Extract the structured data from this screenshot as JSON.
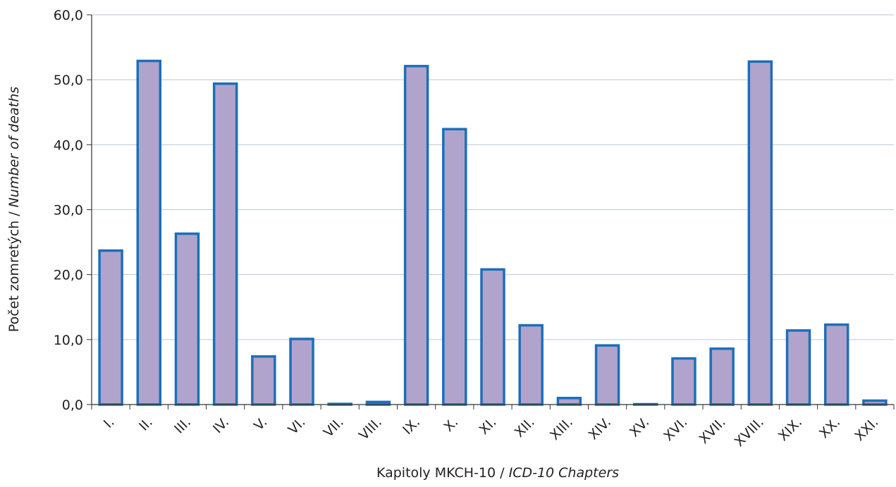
{
  "chart_data": {
    "type": "bar",
    "categories": [
      "I.",
      "II.",
      "III.",
      "IV.",
      "V.",
      "VI.",
      "VII.",
      "VIII.",
      "IX.",
      "X.",
      "XI.",
      "XII.",
      "XIII.",
      "XIV.",
      "XV.",
      "XVI.",
      "XVII.",
      "XVIII.",
      "XIX.",
      "XX.",
      "XXI."
    ],
    "values": [
      23.7,
      52.9,
      26.3,
      49.4,
      7.4,
      10.1,
      0.1,
      0.4,
      52.1,
      42.4,
      20.8,
      12.2,
      1.0,
      9.1,
      0.0,
      7.1,
      8.6,
      52.8,
      11.4,
      12.3,
      0.6
    ],
    "title": "",
    "xlabel": "Kapitoly MKCH-10 / ",
    "xlabel_italic": "ICD-10 Chapters",
    "ylabel": "Počet zomretých / ",
    "ylabel_italic": "Number of deaths",
    "ylim": [
      0,
      60
    ],
    "yticks": [
      "0,0",
      "10,0",
      "20,0",
      "30,0",
      "40,0",
      "50,0",
      "60,0"
    ],
    "grid": true,
    "bar_fill": "#b0a4cc",
    "bar_stroke": "#1d6fb8",
    "grid_color": "#b7c7dc"
  }
}
